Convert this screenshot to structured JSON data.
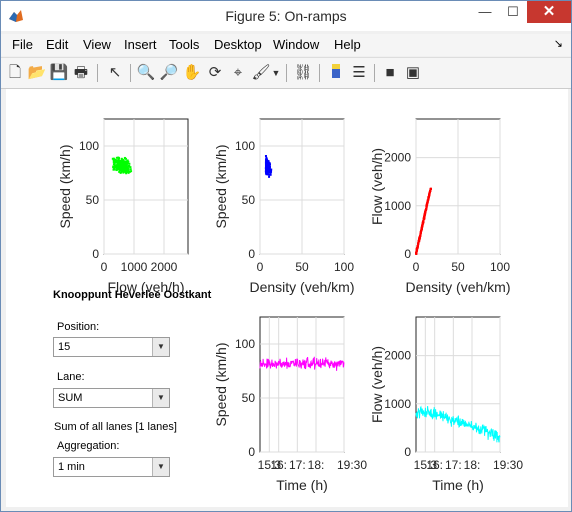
{
  "window": {
    "title": "Figure 5: On-ramps",
    "minimize": "—",
    "maximize": "☐",
    "close": "✕"
  },
  "menu": [
    "File",
    "Edit",
    "View",
    "Insert",
    "Tools",
    "Desktop",
    "Window",
    "Help"
  ],
  "menu_arrow": "↘",
  "toolbar_icons": [
    "new-figure-icon",
    "open-file-icon",
    "save-icon",
    "print-icon",
    "edit-plot-arrow-icon",
    "zoom-in-icon",
    "zoom-out-icon",
    "pan-hand-icon",
    "rotate-3d-icon",
    "data-cursor-icon",
    "brush-icon",
    "brush-dropdown-icon",
    "link-plot-icon",
    "insert-colorbar-icon",
    "insert-legend-icon",
    "hide-plot-tools-icon",
    "show-plot-tools-icon"
  ],
  "panel": {
    "title": "Knooppunt Heverlee Oostkant",
    "position_label": "Position:",
    "position_value": "15",
    "lane_label": "Lane:",
    "lane_value": "SUM",
    "lanes_info": "Sum of all lanes [1 lanes]",
    "aggregation_label": "Aggregation:",
    "aggregation_value": "1 min"
  },
  "chart_data": [
    {
      "type": "scatter",
      "xlabel": "Flow (veh/h)",
      "ylabel": "Speed (km/h)",
      "xlim": [
        0,
        2800
      ],
      "ylim": [
        0,
        125
      ],
      "xticks": [
        "0",
        "1000",
        "2000"
      ],
      "yticks": [
        "0",
        "50",
        "100"
      ],
      "color": "#00ff00",
      "points_summary": {
        "x_range": [
          150,
          1250
        ],
        "y_range": [
          65,
          100
        ],
        "center": [
          600,
          82
        ]
      }
    },
    {
      "type": "scatter",
      "xlabel": "Density (veh/km)",
      "ylabel": "Speed (km/h)",
      "xlim": [
        0,
        100
      ],
      "ylim": [
        0,
        125
      ],
      "xticks": [
        "0",
        "50",
        "100"
      ],
      "yticks": [
        "0",
        "50",
        "100"
      ],
      "color": "#0000ff",
      "points_summary": {
        "x_range": [
          1,
          20
        ],
        "y_range": [
          60,
          100
        ],
        "center": [
          7,
          82
        ]
      }
    },
    {
      "type": "scatter",
      "xlabel": "Density (veh/km)",
      "ylabel": "Flow (veh/h)",
      "xlim": [
        0,
        100
      ],
      "ylim": [
        0,
        2800
      ],
      "xticks": [
        "0",
        "50",
        "100"
      ],
      "yticks": [
        "0",
        "1000",
        "2000"
      ],
      "color": "#ff0000",
      "points_summary": {
        "x_range": [
          0,
          18
        ],
        "y_range": [
          0,
          1350
        ]
      }
    },
    {
      "type": "line",
      "xlabel": "Time (h)",
      "ylabel": "Speed (km/h)",
      "xlim": [
        15,
        19.5
      ],
      "ylim": [
        0,
        125
      ],
      "xticks": [
        "15:3",
        "16:",
        "17:",
        "18:",
        "19:30"
      ],
      "yticks": [
        "0",
        "50",
        "100"
      ],
      "color": "#ff00ff",
      "series_summary": {
        "mean": 82,
        "min": 65,
        "max": 98
      }
    },
    {
      "type": "line",
      "xlabel": "Time (h)",
      "ylabel": "Flow (veh/h)",
      "xlim": [
        15,
        19.5
      ],
      "ylim": [
        0,
        2800
      ],
      "xticks": [
        "15:3",
        "16:",
        "17:",
        "18:",
        "19:30"
      ],
      "yticks": [
        "0",
        "1000",
        "2000"
      ],
      "color": "#00ffff",
      "series_summary": {
        "start": 850,
        "min": 200,
        "max": 1150,
        "end": 300
      }
    }
  ]
}
